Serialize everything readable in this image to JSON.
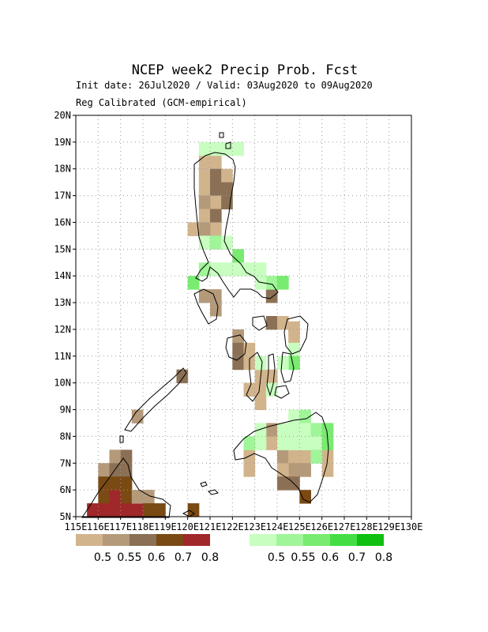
{
  "title": "NCEP week2 Precip Prob. Fcst",
  "init_line": "Init date: 26Jul2020 / Valid: 03Aug2020 to 09Aug2020",
  "calib_line": "Reg Calibrated (GCM-empirical)",
  "chart_data": {
    "type": "heatmap",
    "xlim": [
      115,
      130
    ],
    "ylim": [
      5,
      20
    ],
    "cell_deg": 0.5,
    "x_ticks": [
      "115E",
      "116E",
      "117E",
      "118E",
      "119E",
      "120E",
      "121E",
      "122E",
      "123E",
      "124E",
      "125E",
      "126E",
      "127E",
      "128E",
      "129E",
      "130E"
    ],
    "y_ticks": [
      "5N",
      "6N",
      "7N",
      "8N",
      "9N",
      "10N",
      "11N",
      "12N",
      "13N",
      "14N",
      "15N",
      "16N",
      "17N",
      "18N",
      "19N",
      "20N"
    ],
    "grid": true,
    "dry_legend": {
      "labels": [
        "0.5",
        "0.55",
        "0.6",
        "0.7",
        "0.8"
      ],
      "colors": [
        "#d2b48c",
        "#b59a7a",
        "#8b7055",
        "#7a4a14",
        "#a0282a"
      ]
    },
    "wet_legend": {
      "labels": [
        "0.5",
        "0.55",
        "0.6",
        "0.7",
        "0.8"
      ],
      "colors": [
        "#c8ffc0",
        "#a0f598",
        "#78eb70",
        "#44de44",
        "#10c010"
      ]
    },
    "dry_cells": [
      [
        120.5,
        18,
        1
      ],
      [
        121,
        18,
        1
      ],
      [
        120.5,
        17.5,
        1
      ],
      [
        121,
        17.5,
        3
      ],
      [
        121.5,
        17.5,
        1
      ],
      [
        120.5,
        17,
        1
      ],
      [
        121,
        17,
        3
      ],
      [
        121.5,
        17,
        3
      ],
      [
        121,
        16.5,
        1
      ],
      [
        121.5,
        16.5,
        3
      ],
      [
        120.5,
        16.5,
        2
      ],
      [
        120.5,
        16,
        1
      ],
      [
        121,
        16,
        3
      ],
      [
        121,
        15.5,
        1
      ],
      [
        120.5,
        15.5,
        2
      ],
      [
        120,
        15.5,
        1
      ],
      [
        120.5,
        13,
        2
      ],
      [
        121,
        13,
        2
      ],
      [
        121,
        12.5,
        2
      ],
      [
        123.5,
        13,
        3
      ],
      [
        123.5,
        12,
        3
      ],
      [
        124,
        12,
        1
      ],
      [
        124.5,
        11.5,
        1
      ],
      [
        124.5,
        11.8,
        1
      ],
      [
        122,
        11.5,
        2
      ],
      [
        122,
        11,
        3
      ],
      [
        122,
        10.5,
        3
      ],
      [
        122.5,
        11,
        1
      ],
      [
        122.5,
        10.5,
        1
      ],
      [
        123,
        10,
        1
      ],
      [
        123,
        9.5,
        1
      ],
      [
        122.5,
        9.5,
        1
      ],
      [
        123,
        9,
        1
      ],
      [
        123.5,
        10,
        1
      ],
      [
        119.5,
        10,
        3
      ],
      [
        117.5,
        8.5,
        2
      ],
      [
        123.5,
        8,
        2
      ],
      [
        123.5,
        7.5,
        1
      ],
      [
        124,
        7.5,
        2
      ],
      [
        124,
        7,
        2
      ],
      [
        124.5,
        7,
        1
      ],
      [
        124.5,
        6.5,
        2
      ],
      [
        124,
        6.5,
        1
      ],
      [
        125,
        7,
        1
      ],
      [
        125,
        6.5,
        2
      ],
      [
        124,
        6,
        3
      ],
      [
        124.5,
        6,
        3
      ],
      [
        125,
        5.5,
        4
      ],
      [
        126,
        7,
        1
      ],
      [
        126,
        6.5,
        1
      ],
      [
        122.5,
        7,
        1
      ],
      [
        122.5,
        6.5,
        1
      ],
      [
        116.5,
        7,
        2
      ],
      [
        117,
        7,
        3
      ],
      [
        116,
        6.5,
        2
      ],
      [
        116.5,
        6.5,
        3
      ],
      [
        117,
        6.5,
        3
      ],
      [
        116,
        6,
        4
      ],
      [
        116.5,
        6,
        4
      ],
      [
        117,
        6,
        4
      ],
      [
        116,
        5.5,
        4
      ],
      [
        116.5,
        5.5,
        5
      ],
      [
        117,
        5.5,
        4
      ],
      [
        115.5,
        5,
        5
      ],
      [
        116,
        5,
        5
      ],
      [
        116.5,
        5,
        5
      ],
      [
        117,
        5,
        5
      ],
      [
        117.5,
        5,
        5
      ],
      [
        117.5,
        5.5,
        2
      ],
      [
        118,
        5.5,
        2
      ],
      [
        118,
        5,
        4
      ],
      [
        118.5,
        5,
        4
      ],
      [
        120,
        5,
        4
      ]
    ],
    "wet_cells": [
      [
        120.5,
        18.5,
        1
      ],
      [
        121,
        18.5,
        1
      ],
      [
        121.5,
        18.5,
        1
      ],
      [
        122,
        18.5,
        1
      ],
      [
        120.5,
        15,
        1
      ],
      [
        121,
        15,
        2
      ],
      [
        121.5,
        15,
        1
      ],
      [
        122,
        14.5,
        3
      ],
      [
        122,
        14,
        1
      ],
      [
        120.5,
        14,
        2
      ],
      [
        121,
        14,
        1
      ],
      [
        121.5,
        14,
        1
      ],
      [
        122.5,
        14,
        1
      ],
      [
        123,
        14,
        1
      ],
      [
        120,
        13.5,
        3
      ],
      [
        123.5,
        13.5,
        2
      ],
      [
        124,
        13.5,
        3
      ],
      [
        123,
        13.5,
        1
      ],
      [
        124.5,
        11,
        1
      ],
      [
        124.5,
        10.5,
        3
      ],
      [
        124,
        10.5,
        1
      ],
      [
        123,
        10.5,
        1
      ],
      [
        123.5,
        9.5,
        1
      ],
      [
        123,
        8,
        1
      ],
      [
        124.5,
        8.5,
        1
      ],
      [
        125,
        8.5,
        2
      ],
      [
        125,
        8,
        1
      ],
      [
        125.5,
        8,
        2
      ],
      [
        126,
        8,
        3
      ],
      [
        124,
        8,
        1
      ],
      [
        124.5,
        8,
        1
      ],
      [
        124,
        7.5,
        1
      ],
      [
        124.5,
        7.5,
        1
      ],
      [
        125,
        7.5,
        1
      ],
      [
        125.5,
        7.5,
        1
      ],
      [
        126,
        7.5,
        3
      ],
      [
        125.5,
        7,
        2
      ],
      [
        123,
        7.5,
        1
      ],
      [
        122.5,
        7.5,
        2
      ]
    ]
  }
}
